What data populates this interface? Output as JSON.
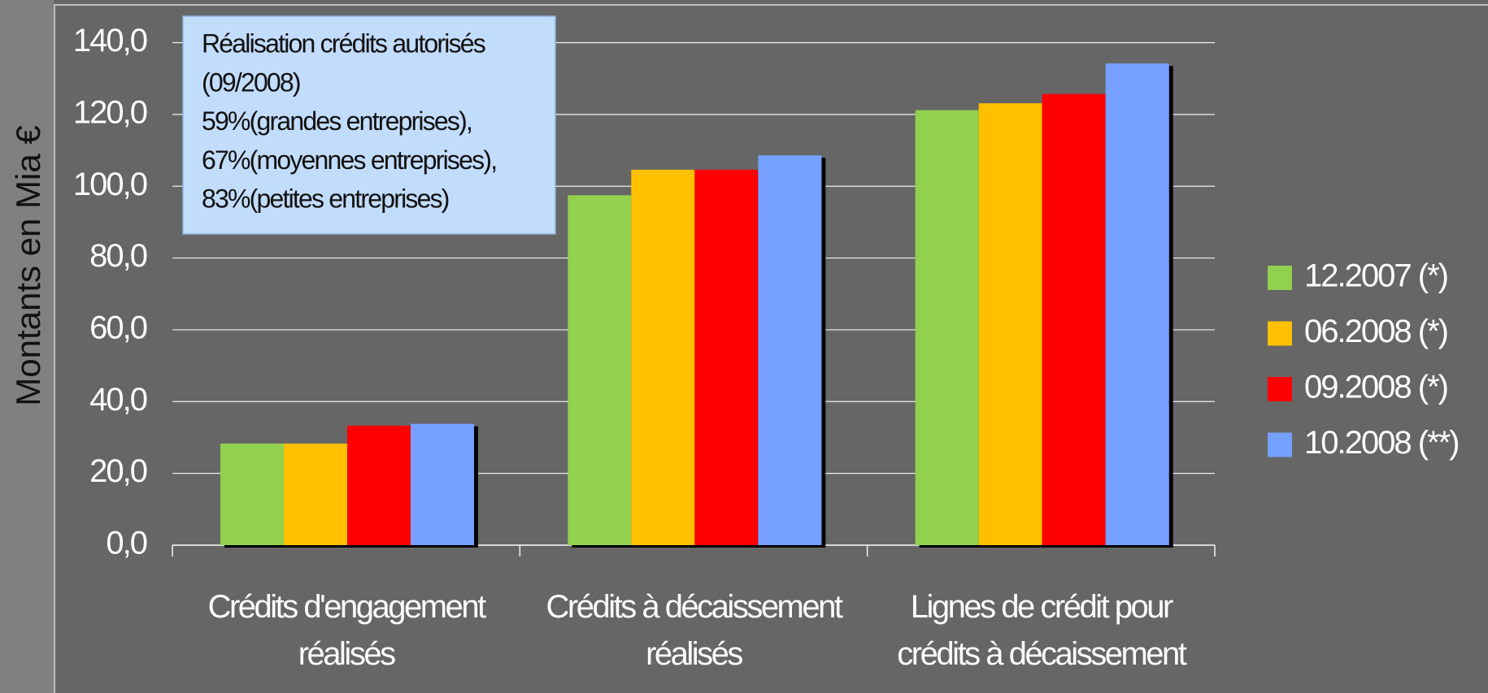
{
  "chart_data": {
    "type": "bar",
    "ylabel": "Montants en Mia €",
    "categories": [
      "Crédits d'engagement\nréalisés",
      "Crédits à décaissement\nréalisés",
      "Lignes de crédit pour\ncrédits à décaissement"
    ],
    "series": [
      {
        "name": "12.2007 (*)",
        "color": "#92d050",
        "values": [
          28.3,
          97.5,
          121.2
        ]
      },
      {
        "name": "06.2008 (*)",
        "color": "#ffc000",
        "values": [
          28.3,
          104.6,
          123.1
        ]
      },
      {
        "name": "09.2008 (*)",
        "color": "#ff0000",
        "values": [
          33.3,
          104.6,
          125.7
        ]
      },
      {
        "name": "10.2008 (**)",
        "color": "#74a0ff",
        "values": [
          33.8,
          108.6,
          134.2
        ]
      }
    ],
    "ylim": [
      0,
      140
    ],
    "yticks": [
      {
        "value": 0,
        "label": "0,0"
      },
      {
        "value": 20,
        "label": "20,0"
      },
      {
        "value": 40,
        "label": "40,0"
      },
      {
        "value": 60,
        "label": "60,0"
      },
      {
        "value": 80,
        "label": "80,0"
      },
      {
        "value": 100,
        "label": "100,0"
      },
      {
        "value": 120,
        "label": "120,0"
      },
      {
        "value": 140,
        "label": "140,0"
      }
    ],
    "grid": true,
    "legend": "right",
    "annotation": [
      "Réalisation crédits autorisés",
      "(09/2008)",
      "59%(grandes entreprises),",
      "67%(moyennes entreprises),",
      "83%(petites entreprises)"
    ]
  }
}
